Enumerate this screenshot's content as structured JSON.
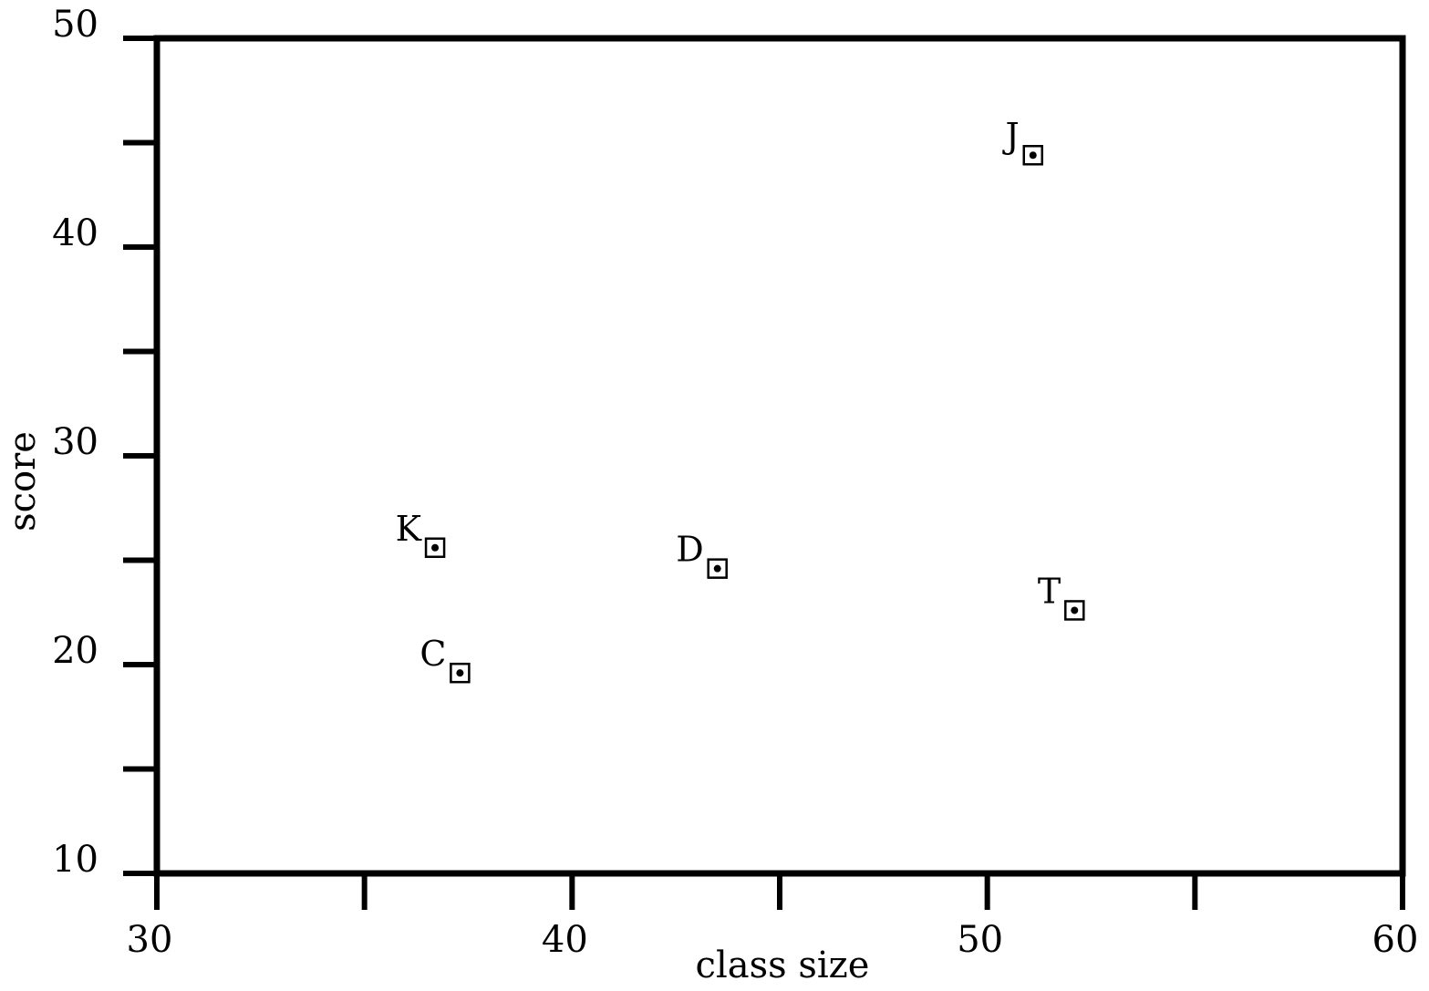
{
  "chart_data": {
    "type": "scatter",
    "title": "",
    "xlabel": "class size",
    "ylabel": "score",
    "xlim": [
      30,
      60
    ],
    "ylim": [
      10,
      50
    ],
    "xticks": [
      30,
      40,
      50,
      60
    ],
    "xminor_ticks": [
      35,
      45,
      55
    ],
    "yticks": [
      10,
      20,
      30,
      40,
      50
    ],
    "yminor_ticks": [
      15,
      25,
      35,
      45
    ],
    "grid": false,
    "legend": "none",
    "marker": "square-with-dot",
    "points": [
      {
        "label": "K",
        "x": 36.7,
        "y": 25.6
      },
      {
        "label": "C",
        "x": 37.3,
        "y": 19.6
      },
      {
        "label": "D",
        "x": 43.5,
        "y": 24.6
      },
      {
        "label": "J",
        "x": 51.1,
        "y": 44.4
      },
      {
        "label": "T",
        "x": 52.1,
        "y": 22.6
      }
    ],
    "colors": {
      "axis": "#000000",
      "marker": "#000000",
      "background": "#ffffff"
    }
  }
}
